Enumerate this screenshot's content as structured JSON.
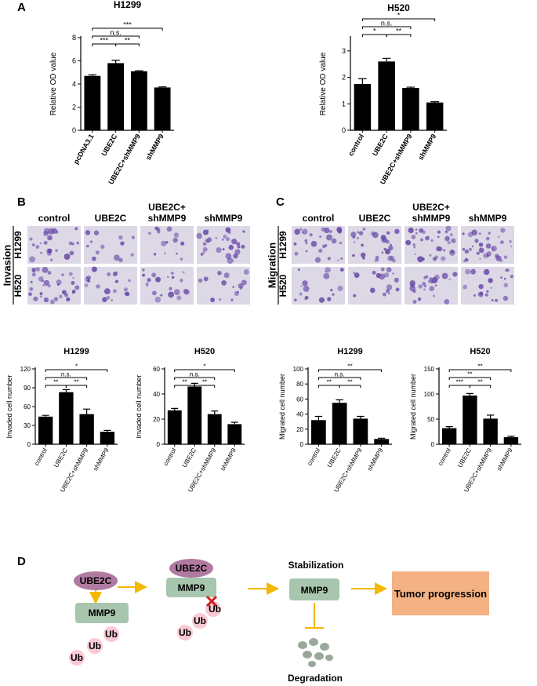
{
  "chart_data": [
    {
      "type": "bar",
      "title": "H1299",
      "ylabel": "Relative OD value",
      "categories": [
        "pcDNA3.1",
        "UBE2C",
        "UBE2C+shMMP9",
        "shMMP9"
      ],
      "values": [
        4.7,
        5.8,
        5.1,
        3.7
      ],
      "errors": [
        0.1,
        0.25,
        0.05,
        0.05
      ],
      "color": "#000000",
      "ylim": [
        0,
        8
      ],
      "yticks": [
        0,
        2,
        4,
        6,
        8
      ],
      "significance": [
        {
          "groups": [
            "pcDNA3.1",
            "shMMP9"
          ],
          "label": "***"
        },
        {
          "groups": [
            "pcDNA3.1",
            "UBE2C+shMMP9"
          ],
          "label": "n.s."
        },
        {
          "groups": [
            "pcDNA3.1",
            "UBE2C"
          ],
          "label": "***"
        },
        {
          "groups": [
            "UBE2C",
            "UBE2C+shMMP9"
          ],
          "label": "**"
        }
      ]
    },
    {
      "type": "bar",
      "title": "H520",
      "ylabel": "Relative OD value",
      "categories": [
        "control",
        "UBE2C",
        "UBE2C+shMMP9",
        "shMMP9"
      ],
      "values": [
        1.75,
        2.6,
        1.6,
        1.05
      ],
      "errors": [
        0.2,
        0.12,
        0.03,
        0.03
      ],
      "color": "#000000",
      "ylim": [
        0,
        3.5
      ],
      "yticks": [
        0,
        1,
        2,
        3
      ],
      "significance": [
        {
          "groups": [
            "control",
            "shMMP9"
          ],
          "label": "*"
        },
        {
          "groups": [
            "control",
            "UBE2C+shMMP9"
          ],
          "label": "n.s."
        },
        {
          "groups": [
            "control",
            "UBE2C"
          ],
          "label": "*"
        },
        {
          "groups": [
            "UBE2C",
            "UBE2C+shMMP9"
          ],
          "label": "**"
        }
      ]
    },
    {
      "type": "bar",
      "title": "H1299",
      "ylabel": "Invaded cell number",
      "categories": [
        "control",
        "UBE2C",
        "UBE2C+shMMP9",
        "shMMP9"
      ],
      "values": [
        44,
        83,
        48,
        20
      ],
      "errors": [
        2,
        4,
        8,
        2
      ],
      "color": "#000000",
      "ylim": [
        0,
        120
      ],
      "yticks": [
        0,
        30,
        60,
        90,
        120
      ],
      "significance": [
        {
          "groups": [
            "control",
            "shMMP9"
          ],
          "label": "*"
        },
        {
          "groups": [
            "control",
            "UBE2C+shMMP9"
          ],
          "label": "n.s."
        },
        {
          "groups": [
            "control",
            "UBE2C"
          ],
          "label": "**"
        },
        {
          "groups": [
            "UBE2C",
            "UBE2C+shMMP9"
          ],
          "label": "**"
        }
      ]
    },
    {
      "type": "bar",
      "title": "H520",
      "ylabel": "Invaded cell number",
      "categories": [
        "control",
        "UBE2C",
        "UBE2C+shMMP9",
        "shMMP9"
      ],
      "values": [
        27,
        46,
        24,
        16
      ],
      "errors": [
        1.5,
        2.5,
        2.5,
        1.5
      ],
      "color": "#000000",
      "ylim": [
        0,
        60
      ],
      "yticks": [
        0,
        20,
        40,
        60
      ],
      "significance": [
        {
          "groups": [
            "control",
            "shMMP9"
          ],
          "label": "*"
        },
        {
          "groups": [
            "control",
            "UBE2C+shMMP9"
          ],
          "label": "n.s."
        },
        {
          "groups": [
            "control",
            "UBE2C"
          ],
          "label": "**"
        },
        {
          "groups": [
            "UBE2C",
            "UBE2C+shMMP9"
          ],
          "label": "**"
        }
      ]
    },
    {
      "type": "bar",
      "title": "H1299",
      "ylabel": "Migrated cell number",
      "categories": [
        "control",
        "UBE2C",
        "UBE2C+shMMP9",
        "shMMP9"
      ],
      "values": [
        32,
        55,
        34,
        7
      ],
      "errors": [
        5,
        4,
        3,
        1
      ],
      "color": "#000000",
      "ylim": [
        0,
        100
      ],
      "yticks": [
        0,
        20,
        40,
        60,
        80,
        100
      ],
      "significance": [
        {
          "groups": [
            "control",
            "shMMP9"
          ],
          "label": "**"
        },
        {
          "groups": [
            "control",
            "UBE2C+shMMP9"
          ],
          "label": "n.s."
        },
        {
          "groups": [
            "control",
            "UBE2C"
          ],
          "label": "**"
        },
        {
          "groups": [
            "UBE2C",
            "UBE2C+shMMP9"
          ],
          "label": "**"
        }
      ]
    },
    {
      "type": "bar",
      "title": "H520",
      "ylabel": "Migrated cell number",
      "categories": [
        "control",
        "UBE2C",
        "UBE2C+shMMP9",
        "shMMP9"
      ],
      "values": [
        32,
        97,
        51,
        14
      ],
      "errors": [
        3,
        4,
        7,
        2
      ],
      "color": "#000000",
      "ylim": [
        0,
        150
      ],
      "yticks": [
        0,
        50,
        100,
        150
      ],
      "significance": [
        {
          "groups": [
            "control",
            "shMMP9"
          ],
          "label": "**"
        },
        {
          "groups": [
            "control",
            "UBE2C+shMMP9"
          ],
          "label": "**"
        },
        {
          "groups": [
            "control",
            "UBE2C"
          ],
          "label": "***"
        },
        {
          "groups": [
            "UBE2C",
            "UBE2C+shMMP9"
          ],
          "label": "**"
        }
      ]
    }
  ],
  "panel_letters": [
    "A",
    "B",
    "C",
    "D"
  ],
  "invasion": {
    "side_label": "Invasion",
    "columns": [
      [
        "control"
      ],
      [
        "UBE2C"
      ],
      [
        "UBE2C+",
        "shMMP9"
      ],
      [
        "shMMP9"
      ]
    ],
    "rows": [
      "H1299",
      "H520"
    ]
  },
  "migration": {
    "side_label": "Migration",
    "columns": [
      [
        "control"
      ],
      [
        "UBE2C"
      ],
      [
        "UBE2C+",
        "shMMP9"
      ],
      [
        "shMMP9"
      ]
    ],
    "rows": [
      "H1299",
      "H520"
    ]
  },
  "diagram": {
    "step1": {
      "enzyme": "UBE2C",
      "substrate": "MMP9",
      "ubiquitin": [
        "Ub",
        "Ub",
        "Ub"
      ]
    },
    "step2": {
      "enzyme": "UBE2C",
      "substrate": "MMP9",
      "ubiquitin": [
        "Ub",
        "Ub",
        "Ub"
      ]
    },
    "step3": {
      "label": "Stabilization",
      "substrate": "MMP9",
      "fate": "Degradation"
    },
    "outcome": "Tumor progression"
  }
}
